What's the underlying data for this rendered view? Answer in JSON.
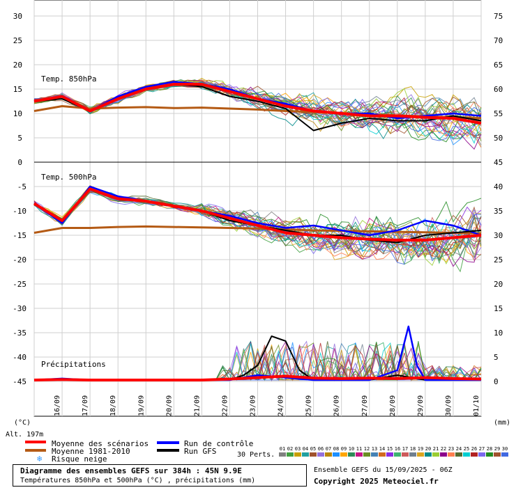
{
  "chart_data": {
    "type": "line",
    "title": "Diagramme des ensembles GEFS sur 384h : 45N 9.9E",
    "subtitle": "Températures 850hPa et 500hPa (°C) , précipitations (mm)",
    "run_info": "Ensemble GEFS du 15/09/2025 - 06Z",
    "copyright": "Copyright 2025 Meteociel.fr",
    "left_unit": "(°C)",
    "right_unit": "(mm)",
    "altitude": "Alt. 197m",
    "perts_label": "30 Perts.",
    "x_labels": [
      "16/09",
      "17/09",
      "18/09",
      "19/09",
      "20/09",
      "21/09",
      "22/09",
      "23/09",
      "24/09",
      "25/09",
      "26/09",
      "27/09",
      "28/09",
      "29/09",
      "30/09",
      "01/10"
    ],
    "x_range": [
      "2025-09-15T06:00",
      "2025-10-01T06:00"
    ],
    "colors": {
      "moyenne": "#ff0000",
      "climato": "#b45a14",
      "controle": "#0000ff",
      "gfs": "#000000",
      "perts": [
        "#808080",
        "#40a040",
        "#c8a000",
        "#20a0a0",
        "#a0522d",
        "#9370db",
        "#b8860b",
        "#1e90ff",
        "#ffa500",
        "#2e8b57",
        "#c71585",
        "#6b8e23",
        "#4682b4",
        "#d2691e",
        "#8a2be2",
        "#3cb371",
        "#cd5c5c",
        "#708090",
        "#daa520",
        "#008b8b",
        "#9acd32",
        "#8b008b",
        "#ff7f50",
        "#556b2f",
        "#00ced1",
        "#b22222",
        "#7b68ee",
        "#228b22",
        "#a0522d",
        "#4169e1"
      ]
    },
    "legend": {
      "moyenne": "Moyenne des scénarios",
      "climato": "Moyenne 1981-2010",
      "controle": "Run de contrôle",
      "gfs": "Run GFS",
      "neige": "Risque neige"
    },
    "perts_numbers": [
      "01",
      "02",
      "03",
      "04",
      "05",
      "06",
      "07",
      "08",
      "09",
      "10",
      "11",
      "12",
      "13",
      "14",
      "15",
      "16",
      "17",
      "18",
      "19",
      "20",
      "21",
      "22",
      "23",
      "24",
      "25",
      "26",
      "27",
      "28",
      "29",
      "30"
    ],
    "panels": [
      {
        "name": "Temp. 850hPa",
        "label": "Temp. 850hPa",
        "left_ticks": [
          "30",
          "25",
          "20",
          "15",
          "10",
          "5",
          "0"
        ],
        "right_ticks": [
          "75",
          "70",
          "65",
          "60",
          "55",
          "50"
        ],
        "ylim": [
          0,
          30
        ],
        "grid": true,
        "series": [
          {
            "name": "Moyenne des scénarios",
            "role": "moyenne",
            "days": [
              0,
              1,
              2,
              3,
              4,
              5,
              6,
              7,
              8,
              9,
              10,
              11,
              12,
              13,
              14,
              15,
              16
            ],
            "values": [
              12.5,
              13.5,
              10.5,
              13,
              15,
              16,
              16,
              14.5,
              13,
              11.5,
              10.5,
              10,
              9.5,
              9.5,
              9.2,
              9,
              8
            ]
          },
          {
            "name": "Moyenne 1981-2010",
            "role": "climato",
            "days": [
              0,
              1,
              2,
              3,
              4,
              5,
              6,
              7,
              8,
              9,
              10,
              11,
              12,
              13,
              14,
              15,
              16
            ],
            "values": [
              10.5,
              11.5,
              11,
              11.2,
              11.3,
              11.1,
              11.2,
              11,
              10.8,
              10.5,
              10.3,
              10,
              9.8,
              9.6,
              9.4,
              9.2,
              9
            ]
          },
          {
            "name": "Run de contrôle",
            "role": "controle",
            "days": [
              0,
              1,
              2,
              3,
              4,
              5,
              6,
              7,
              8,
              9,
              10,
              11,
              12,
              13,
              14,
              15,
              16
            ],
            "values": [
              12.5,
              13.5,
              10.5,
              13.5,
              15.5,
              16.5,
              16,
              15,
              13,
              12,
              10.5,
              10,
              10,
              9,
              9.5,
              10,
              9.5
            ]
          },
          {
            "name": "Run GFS",
            "role": "gfs",
            "days": [
              0,
              1,
              2,
              3,
              4,
              5,
              6,
              7,
              8,
              9,
              10,
              11,
              12,
              13,
              14,
              15,
              16
            ],
            "values": [
              12.5,
              13,
              10.5,
              13,
              15,
              16,
              15.5,
              13.5,
              12.5,
              11,
              6.5,
              8,
              9,
              8.5,
              8.5,
              9.5,
              8.5
            ]
          }
        ]
      },
      {
        "name": "Temp. 500hPa",
        "label": "Temp. 500hPa",
        "left_ticks": [
          "-5",
          "-10",
          "-15",
          "-20",
          "-25",
          "-30",
          "-35",
          "-40",
          "-45"
        ],
        "right_ticks": [
          "45",
          "40",
          "35",
          "30",
          "25",
          "20",
          "15",
          "10",
          "5",
          "0"
        ],
        "ylim": [
          -45,
          0
        ],
        "grid": true,
        "series": [
          {
            "name": "Moyenne des scénarios",
            "role": "moyenne",
            "days": [
              0,
              1,
              2,
              3,
              4,
              5,
              6,
              7,
              8,
              9,
              10,
              11,
              12,
              13,
              14,
              15,
              16
            ],
            "values": [
              -8.5,
              -12,
              -5.5,
              -7.5,
              -8,
              -9,
              -10,
              -11.5,
              -13,
              -14.5,
              -15,
              -15.5,
              -15.8,
              -16,
              -16,
              -15.5,
              -15
            ]
          },
          {
            "name": "Moyenne 1981-2010",
            "role": "climato",
            "days": [
              0,
              1,
              2,
              3,
              4,
              5,
              6,
              7,
              8,
              9,
              10,
              11,
              12,
              13,
              14,
              15,
              16
            ],
            "values": [
              -14.5,
              -13.5,
              -13.5,
              -13.3,
              -13.2,
              -13.3,
              -13.4,
              -13.5,
              -13.6,
              -13.8,
              -14,
              -14.1,
              -14.2,
              -14.3,
              -14.4,
              -14.5,
              -14.6
            ]
          },
          {
            "name": "Run de contrôle",
            "role": "controle",
            "days": [
              0,
              1,
              2,
              3,
              4,
              5,
              6,
              7,
              8,
              9,
              10,
              11,
              12,
              13,
              14,
              15,
              16
            ],
            "values": [
              -8.5,
              -12.5,
              -5,
              -7,
              -8,
              -9,
              -10,
              -11,
              -12.5,
              -13.5,
              -13,
              -14,
              -15,
              -14,
              -12,
              -13,
              -15
            ]
          },
          {
            "name": "Run GFS",
            "role": "gfs",
            "days": [
              0,
              1,
              2,
              3,
              4,
              5,
              6,
              7,
              8,
              9,
              10,
              11,
              12,
              13,
              14,
              15,
              16
            ],
            "values": [
              -8.5,
              -12,
              -5.5,
              -7.5,
              -8,
              -9,
              -10,
              -12,
              -13,
              -14,
              -15,
              -15,
              -16,
              -16.5,
              -15,
              -14.5,
              -14
            ]
          }
        ]
      },
      {
        "name": "Précipitations",
        "label": "Précipitations",
        "right_ticks": [
          "15",
          "10",
          "5",
          "0"
        ],
        "ylim": [
          0,
          15
        ],
        "series": [
          {
            "name": "Moyenne des scénarios",
            "role": "moyenne",
            "days": [
              0,
              1,
              2,
              3,
              4,
              5,
              6,
              7,
              8,
              9,
              10,
              11,
              12,
              13,
              14,
              15,
              16
            ],
            "values": [
              0,
              0.1,
              0,
              0,
              0,
              0,
              0,
              0.2,
              0.5,
              0.8,
              0.4,
              0.3,
              0.4,
              0.3,
              0.5,
              0.3,
              0.2
            ]
          },
          {
            "name": "Run GFS",
            "role": "gfs",
            "days": [
              0,
              1,
              2,
              3,
              4,
              5,
              6,
              7,
              7.5,
              8,
              8.5,
              9,
              9.5,
              10,
              11,
              12,
              13,
              14,
              15,
              16
            ],
            "values": [
              0,
              0,
              0,
              0,
              0,
              0,
              0,
              0,
              1,
              3,
              9,
              8,
              2,
              0,
              0,
              0,
              1,
              0,
              0,
              0
            ]
          },
          {
            "name": "Run de contrôle",
            "role": "controle",
            "days": [
              0,
              1,
              2,
              3,
              4,
              5,
              6,
              7,
              8,
              9,
              10,
              11,
              12,
              13,
              13.4,
              13.7,
              14,
              15,
              16
            ],
            "values": [
              0,
              0.3,
              0,
              0,
              0,
              0,
              0,
              0,
              1,
              0.5,
              0,
              0,
              0,
              2,
              11,
              3,
              0,
              0,
              0
            ]
          }
        ]
      }
    ]
  }
}
